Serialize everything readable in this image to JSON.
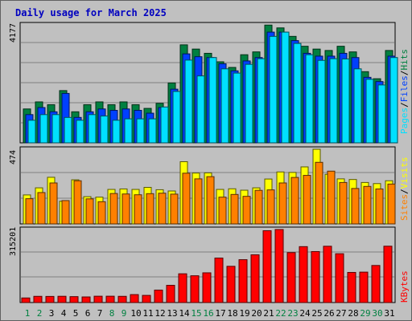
{
  "title": "Daily usage for March 2025",
  "colors": {
    "hits": "#008040",
    "files": "#0040ff",
    "pages": "#00e0ff",
    "visits": "#ffff00",
    "sites": "#ff8000",
    "kbytes": "#ff0000",
    "weekend_day": "#008040",
    "weekday": "#000000",
    "title": "#0000c0"
  },
  "legend_top": {
    "pages": "Pages",
    "files": "Files",
    "hits": "Hits",
    "sep": "/"
  },
  "legend_mid": {
    "sites": "Sites",
    "visits": "Visits",
    "sep": "/"
  },
  "legend_bottom": {
    "kbytes": "KBytes"
  },
  "chart_data": {
    "type": "bar",
    "categories": [
      "1",
      "2",
      "3",
      "4",
      "5",
      "6",
      "7",
      "8",
      "9",
      "10",
      "11",
      "12",
      "13",
      "14",
      "15",
      "16",
      "17",
      "18",
      "19",
      "20",
      "21",
      "22",
      "23",
      "24",
      "25",
      "26",
      "27",
      "28",
      "29",
      "30",
      "31"
    ],
    "weekend_days": [
      "1",
      "2",
      "8",
      "9",
      "15",
      "16",
      "22",
      "23",
      "29",
      "30"
    ],
    "panels": [
      {
        "name": "top",
        "ymax_label": "4177",
        "ymax": 4177,
        "series": [
          {
            "name": "Hits",
            "color_key": "hits",
            "values": [
              1200,
              1450,
              1350,
              1850,
              1100,
              1350,
              1450,
              1350,
              1450,
              1350,
              1220,
              1400,
              2120,
              3470,
              3320,
              3170,
              2870,
              2670,
              3120,
              3220,
              4170,
              4070,
              3770,
              3420,
              3320,
              3270,
              3420,
              3220,
              2520,
              2270,
              3270
            ]
          },
          {
            "name": "Files",
            "color_key": "files",
            "values": [
              1000,
              1250,
              1100,
              1750,
              900,
              1100,
              1200,
              1150,
              1200,
              1150,
              1050,
              1250,
              1900,
              3150,
              3050,
              3020,
              2800,
              2550,
              2900,
              3020,
              3920,
              3920,
              3620,
              3170,
              3070,
              3070,
              3170,
              3020,
              2320,
              2170,
              3070
            ]
          },
          {
            "name": "Pages",
            "color_key": "pages",
            "values": [
              800,
              1000,
              1000,
              900,
              800,
              1000,
              950,
              800,
              850,
              850,
              850,
              1270,
              1820,
              2930,
              2370,
              3020,
              2620,
              2470,
              2780,
              2980,
              3770,
              3920,
              3520,
              3120,
              2920,
              2980,
              2970,
              2620,
              2250,
              2050,
              3020
            ]
          }
        ]
      },
      {
        "name": "middle",
        "ymax_label": "474",
        "ymax": 474,
        "series": [
          {
            "name": "Visits",
            "color_key": "visits",
            "values": [
              184,
              229,
              296,
              144,
              280,
              173,
              170,
              219,
              222,
              219,
              232,
              217,
              209,
              395,
              323,
              324,
              219,
              223,
              214,
              229,
              285,
              330,
              327,
              362,
              474,
              315,
              286,
              282,
              263,
              256,
              274
            ]
          },
          {
            "name": "Sites",
            "color_key": "sites",
            "values": [
              160,
              199,
              260,
              148,
              274,
              159,
              141,
              193,
              190,
              185,
              192,
              195,
              189,
              322,
              286,
              300,
              170,
              187,
              175,
              213,
              216,
              260,
              295,
              308,
              391,
              335,
              263,
              225,
              238,
              222,
              253
            ]
          }
        ]
      },
      {
        "name": "bottom",
        "ymax_label": "315201",
        "ymax": 315201,
        "series": [
          {
            "name": "KBytes",
            "color_key": "kbytes",
            "values": [
              19800,
              26800,
              26400,
              27000,
              25500,
              24200,
              27300,
              27300,
              26800,
              34300,
              30900,
              53800,
              74400,
              124100,
              115600,
              128300,
              191900,
              156400,
              185000,
              206000,
              310000,
              315201,
              215600,
              241300,
              220000,
              243000,
              210700,
              130000,
              131300,
              160000,
              243200
            ]
          }
        ]
      }
    ]
  }
}
